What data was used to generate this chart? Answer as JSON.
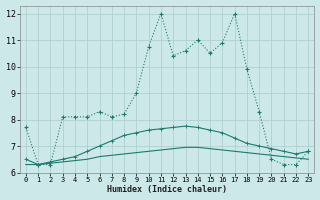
{
  "xlabel": "Humidex (Indice chaleur)",
  "xlim": [
    -0.5,
    23.5
  ],
  "ylim": [
    6,
    12.3
  ],
  "yticks": [
    6,
    7,
    8,
    9,
    10,
    11,
    12
  ],
  "xticks": [
    0,
    1,
    2,
    3,
    4,
    5,
    6,
    7,
    8,
    9,
    10,
    11,
    12,
    13,
    14,
    15,
    16,
    17,
    18,
    19,
    20,
    21,
    22,
    23
  ],
  "bg_color": "#cde8e8",
  "grid_color": "#b0d0d0",
  "line_color": "#1a7a6e",
  "line1_x": [
    0,
    1,
    2,
    3,
    4,
    5,
    6,
    7,
    8,
    9,
    10,
    11,
    12,
    13,
    14,
    15,
    16,
    17,
    18,
    19,
    20,
    21,
    22,
    23
  ],
  "line1_y": [
    7.7,
    6.3,
    6.3,
    8.1,
    8.1,
    8.1,
    8.3,
    8.1,
    8.2,
    9.0,
    10.75,
    12.0,
    10.4,
    10.6,
    11.0,
    10.5,
    10.9,
    12.0,
    9.9,
    8.3,
    6.5,
    6.3,
    6.3,
    6.8
  ],
  "line2_x": [
    0,
    1,
    2,
    3,
    4,
    5,
    6,
    7,
    8,
    9,
    10,
    11,
    12,
    13,
    14,
    15,
    16,
    17,
    18,
    19,
    20,
    21,
    22,
    23
  ],
  "line2_y": [
    6.5,
    6.3,
    6.4,
    6.5,
    6.6,
    6.8,
    7.0,
    7.2,
    7.4,
    7.5,
    7.6,
    7.65,
    7.7,
    7.75,
    7.7,
    7.6,
    7.5,
    7.3,
    7.1,
    7.0,
    6.9,
    6.8,
    6.7,
    6.8
  ],
  "line3_x": [
    0,
    1,
    2,
    3,
    4,
    5,
    6,
    7,
    8,
    9,
    10,
    11,
    12,
    13,
    14,
    15,
    16,
    17,
    18,
    19,
    20,
    21,
    22,
    23
  ],
  "line3_y": [
    6.3,
    6.3,
    6.35,
    6.4,
    6.45,
    6.5,
    6.6,
    6.65,
    6.7,
    6.75,
    6.8,
    6.85,
    6.9,
    6.95,
    6.95,
    6.9,
    6.85,
    6.8,
    6.75,
    6.7,
    6.65,
    6.6,
    6.55,
    6.5
  ]
}
